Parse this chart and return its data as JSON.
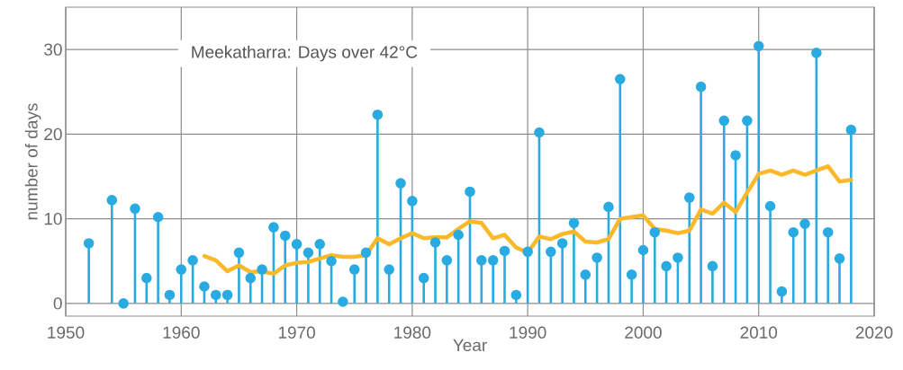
{
  "chart_data": {
    "type": "lollipop",
    "title": "Meekatharra: Days over 42°C",
    "xlabel": "Year",
    "ylabel": "number of days",
    "xlim": [
      1950,
      2020
    ],
    "xticks": [
      1950,
      1960,
      1970,
      1980,
      1990,
      2000,
      2010,
      2020
    ],
    "ylim": [
      -1.5,
      35
    ],
    "yticks": [
      0,
      10,
      20,
      30
    ],
    "grid": true,
    "marker": "circle",
    "series": [
      {
        "color": "#29abe2",
        "x": [
          1952,
          1954,
          1955,
          1956,
          1957,
          1958,
          1959,
          1960,
          1961,
          1962,
          1963,
          1964,
          1965,
          1966,
          1967,
          1968,
          1969,
          1970,
          1971,
          1972,
          1973,
          1974,
          1975,
          1976,
          1977,
          1978,
          1979,
          1980,
          1981,
          1982,
          1983,
          1984,
          1985,
          1986,
          1987,
          1988,
          1989,
          1990,
          1991,
          1992,
          1993,
          1994,
          1995,
          1996,
          1997,
          1998,
          1999,
          2000,
          2001,
          2002,
          2003,
          2004,
          2005,
          2006,
          2007,
          2008,
          2009,
          2010,
          2011,
          2012,
          2013,
          2014,
          2015,
          2016,
          2017,
          2018
        ],
        "values": [
          7.1,
          12.2,
          0,
          11.2,
          3,
          10.2,
          1,
          4,
          5.1,
          2,
          1,
          1,
          6,
          3,
          4,
          9,
          8,
          7,
          6,
          7,
          5,
          0.2,
          4,
          6,
          22.3,
          4,
          14.2,
          12.1,
          3,
          7.2,
          5.1,
          8.1,
          13.2,
          5.1,
          5.1,
          6.2,
          1,
          6.1,
          20.2,
          6.1,
          7.1,
          9.5,
          3.4,
          5.4,
          11.4,
          26.5,
          3.4,
          6.3,
          8.4,
          4.4,
          5.4,
          12.5,
          25.6,
          4.4,
          21.6,
          17.5,
          21.6,
          30.4,
          11.5,
          1.4,
          8.4,
          9.4,
          29.6,
          8.4,
          5.3,
          20.5
        ]
      },
      {
        "type": "line",
        "color": "#fbb829",
        "marker": "none",
        "line_style": "solid",
        "x": [
          1962,
          1963,
          1964,
          1965,
          1966,
          1967,
          1968,
          1969,
          1970,
          1971,
          1972,
          1973,
          1974,
          1975,
          1976,
          1977,
          1978,
          1979,
          1980,
          1981,
          1982,
          1983,
          1984,
          1985,
          1986,
          1987,
          1988,
          1989,
          1990,
          1991,
          1992,
          1993,
          1994,
          1995,
          1996,
          1997,
          1998,
          1999,
          2000,
          2001,
          2002,
          2003,
          2004,
          2005,
          2006,
          2007,
          2008,
          2009,
          2010,
          2011,
          2012,
          2013,
          2014,
          2015,
          2016,
          2017,
          2018
        ],
        "values": [
          5.6,
          5.1,
          3.8,
          4.5,
          3.7,
          3.8,
          3.5,
          4.5,
          4.8,
          4.9,
          5.3,
          5.7,
          5.5,
          5.5,
          5.7,
          7.7,
          7.0,
          7.7,
          8.3,
          7.7,
          7.8,
          7.8,
          8.8,
          9.7,
          9.5,
          7.7,
          8.1,
          6.6,
          6.0,
          7.9,
          7.6,
          8.2,
          8.5,
          7.3,
          7.2,
          7.6,
          10.0,
          10.2,
          10.4,
          8.8,
          8.6,
          8.3,
          8.6,
          11.1,
          10.6,
          11.9,
          10.8,
          13.1,
          15.3,
          15.7,
          15.2,
          15.7,
          15.2,
          15.7,
          16.2,
          14.4,
          14.6
        ]
      }
    ]
  }
}
